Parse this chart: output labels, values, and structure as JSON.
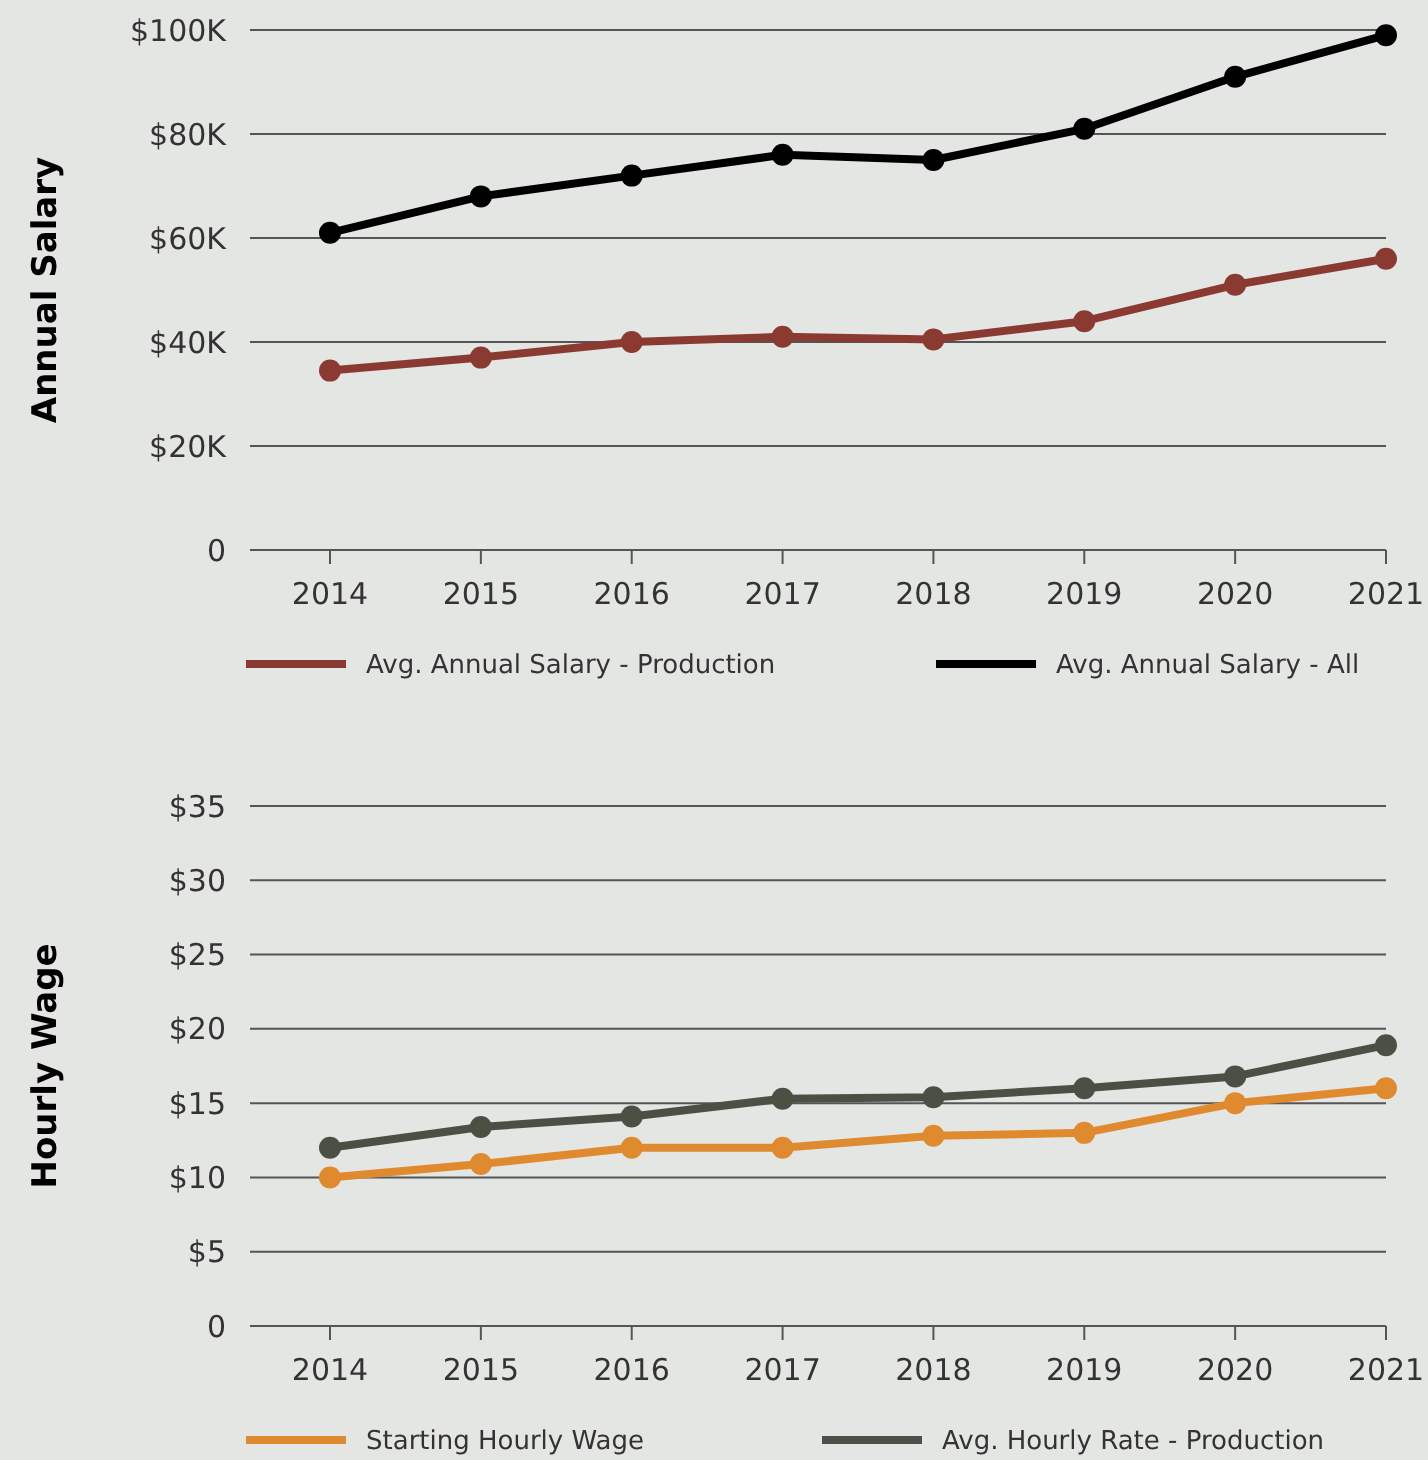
{
  "chart_data": [
    {
      "type": "line",
      "ylabel": "Annual Salary",
      "categories": [
        "2014",
        "2015",
        "2016",
        "2017",
        "2018",
        "2019",
        "2020",
        "2021"
      ],
      "ylim": [
        0,
        100000
      ],
      "yticks": [
        {
          "value": 0,
          "label": "0"
        },
        {
          "value": 20000,
          "label": "$20K"
        },
        {
          "value": 40000,
          "label": "$40K"
        },
        {
          "value": 60000,
          "label": "$60K"
        },
        {
          "value": 80000,
          "label": "$80K"
        },
        {
          "value": 100000,
          "label": "$100K"
        }
      ],
      "grid": "y",
      "legend": "bottom",
      "marker": "circle",
      "line_style": "solid",
      "series": [
        {
          "name": "Avg. Annual Salary - Production",
          "color": "#8b3a32",
          "values": [
            34500,
            37000,
            40000,
            41000,
            40500,
            44000,
            51000,
            56000
          ]
        },
        {
          "name": "Avg. Annual Salary - All",
          "color": "#000000",
          "values": [
            61000,
            68000,
            72000,
            76000,
            75000,
            81000,
            91000,
            99000
          ]
        }
      ]
    },
    {
      "type": "line",
      "ylabel": "Hourly Wage",
      "categories": [
        "2014",
        "2015",
        "2016",
        "2017",
        "2018",
        "2019",
        "2020",
        "2021"
      ],
      "ylim": [
        0,
        35
      ],
      "yticks": [
        {
          "value": 0,
          "label": "0"
        },
        {
          "value": 5,
          "label": "$5"
        },
        {
          "value": 10,
          "label": "$10"
        },
        {
          "value": 15,
          "label": "$15"
        },
        {
          "value": 20,
          "label": "$20"
        },
        {
          "value": 25,
          "label": "$25"
        },
        {
          "value": 30,
          "label": "$30"
        },
        {
          "value": 35,
          "label": "$35"
        }
      ],
      "grid": "y",
      "legend": "bottom",
      "marker": "circle",
      "line_style": "solid",
      "series": [
        {
          "name": "Starting Hourly Wage",
          "color": "#e08a30",
          "values": [
            10,
            10.9,
            12,
            12,
            12.8,
            13,
            15,
            16
          ]
        },
        {
          "name": "Avg. Hourly Rate - Production",
          "color": "#4a5044",
          "values": [
            12,
            13.4,
            14.1,
            15.3,
            15.4,
            16,
            16.8,
            18.9
          ]
        }
      ]
    }
  ]
}
